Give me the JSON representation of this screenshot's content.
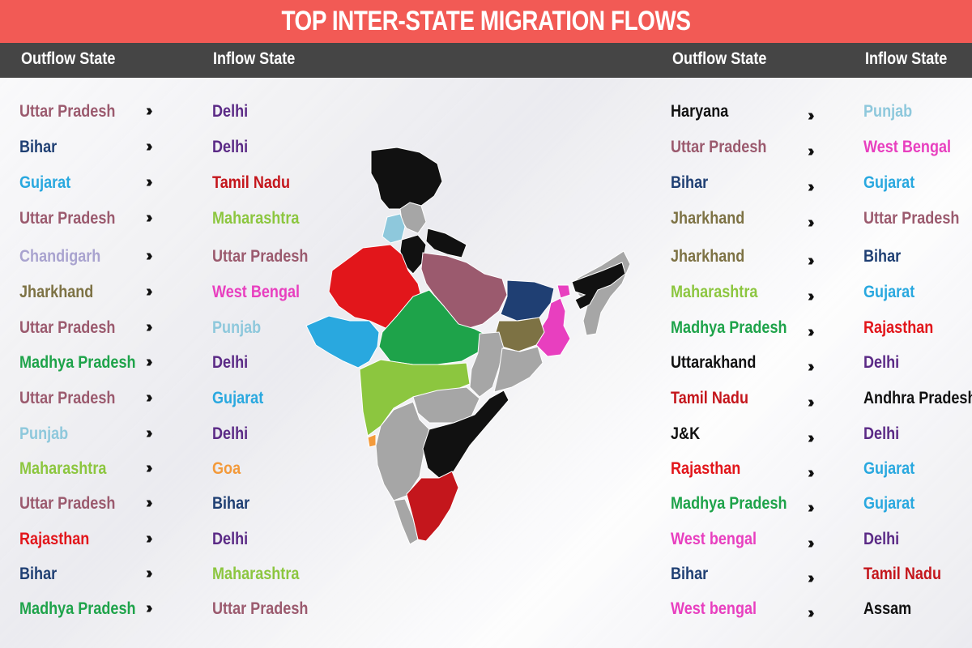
{
  "title": "TOP INTER-STATE MIGRATION FLOWS",
  "headers": {
    "left_outflow": "Outflow State",
    "left_inflow": "Inflow State",
    "right_outflow": "Outflow State",
    "right_inflow": "Inflow State"
  },
  "arrow_glyph": "››››",
  "colors": {
    "Uttar Pradesh": "#9b5a6e",
    "Bihar": "#1f3f73",
    "Gujarat": "#29a8df",
    "Chandigarh": "#a9a3cf",
    "Jharkhand": "#7d7244",
    "Madhya Pradesh": "#1ea34a",
    "Punjab": "#8ec8dc",
    "Maharashtra": "#8cc63f",
    "Rajasthan": "#e2161b",
    "Delhi": "#5b2a86",
    "Tamil Nadu": "#c4161c",
    "West Bengal": "#e83fbf",
    "Goa": "#f39a3b",
    "Haryana": "#111111",
    "Uttarakhand": "#111111",
    "J&K": "#111111",
    "Andhra Pradesh": "#111111",
    "Assam": "#111111"
  },
  "left_flows": [
    {
      "from": "Uttar Pradesh",
      "to": "Delhi",
      "from_color": "#9b5a6e",
      "to_color": "#5b2a86"
    },
    {
      "from": "Bihar",
      "to": "Delhi",
      "from_color": "#1f3f73",
      "to_color": "#5b2a86"
    },
    {
      "from": "Gujarat",
      "to": "Tamil Nadu",
      "from_color": "#29a8df",
      "to_color": "#c4161c"
    },
    {
      "from": "Uttar Pradesh",
      "to": "Maharashtra",
      "from_color": "#9b5a6e",
      "to_color": "#8cc63f"
    },
    {
      "from": "Chandigarh",
      "to": "Uttar Pradesh",
      "from_color": "#a9a3cf",
      "to_color": "#9b5a6e"
    },
    {
      "from": "Jharkhand",
      "to": "West Bengal",
      "from_color": "#7d7244",
      "to_color": "#e83fbf"
    },
    {
      "from": "Uttar Pradesh",
      "to": "Punjab",
      "from_color": "#9b5a6e",
      "to_color": "#8ec8dc"
    },
    {
      "from": "Madhya Pradesh",
      "to": "Delhi",
      "from_color": "#1ea34a",
      "to_color": "#5b2a86"
    },
    {
      "from": "Uttar Pradesh",
      "to": "Gujarat",
      "from_color": "#9b5a6e",
      "to_color": "#29a8df"
    },
    {
      "from": "Punjab",
      "to": "Delhi",
      "from_color": "#8ec8dc",
      "to_color": "#5b2a86"
    },
    {
      "from": "Maharashtra",
      "to": "Goa",
      "from_color": "#8cc63f",
      "to_color": "#f39a3b"
    },
    {
      "from": "Uttar Pradesh",
      "to": "Bihar",
      "from_color": "#9b5a6e",
      "to_color": "#1f3f73"
    },
    {
      "from": "Rajasthan",
      "to": "Delhi",
      "from_color": "#e2161b",
      "to_color": "#5b2a86"
    },
    {
      "from": "Bihar",
      "to": "Maharashtra",
      "from_color": "#1f3f73",
      "to_color": "#8cc63f"
    },
    {
      "from": "Madhya Pradesh",
      "to": "Uttar Pradesh",
      "from_color": "#1ea34a",
      "to_color": "#9b5a6e"
    }
  ],
  "right_flows": [
    {
      "from": "Haryana",
      "to": "Punjab",
      "from_color": "#111111",
      "to_color": "#8ec8dc"
    },
    {
      "from": "Uttar Pradesh",
      "to": "West Bengal",
      "from_color": "#9b5a6e",
      "to_color": "#e83fbf"
    },
    {
      "from": "Bihar",
      "to": "Gujarat",
      "from_color": "#1f3f73",
      "to_color": "#29a8df"
    },
    {
      "from": "Jharkhand",
      "to": "Uttar Pradesh",
      "from_color": "#7d7244",
      "to_color": "#9b5a6e"
    },
    {
      "from": "Jharkhand",
      "to": "Bihar",
      "from_color": "#7d7244",
      "to_color": "#1f3f73"
    },
    {
      "from": "Maharashtra",
      "to": "Gujarat",
      "from_color": "#8cc63f",
      "to_color": "#29a8df"
    },
    {
      "from": "Madhya Pradesh",
      "to": "Rajasthan",
      "from_color": "#1ea34a",
      "to_color": "#e2161b"
    },
    {
      "from": "Uttarakhand",
      "to": "Delhi",
      "from_color": "#111111",
      "to_color": "#5b2a86"
    },
    {
      "from": "Tamil Nadu",
      "to": "Andhra Pradesh",
      "from_color": "#c4161c",
      "to_color": "#111111"
    },
    {
      "from": "J&K",
      "to": "Delhi",
      "from_color": "#111111",
      "to_color": "#5b2a86"
    },
    {
      "from": "Rajasthan",
      "to": "Gujarat",
      "from_color": "#e2161b",
      "to_color": "#29a8df"
    },
    {
      "from": "Madhya Pradesh",
      "to": "Gujarat",
      "from_color": "#1ea34a",
      "to_color": "#29a8df"
    },
    {
      "from": "West bengal",
      "to": "Delhi",
      "from_color": "#e83fbf",
      "to_color": "#5b2a86"
    },
    {
      "from": "Bihar",
      "to": "Tamil Nadu",
      "from_color": "#1f3f73",
      "to_color": "#c4161c"
    },
    {
      "from": "West bengal",
      "to": "Assam",
      "from_color": "#e83fbf",
      "to_color": "#111111"
    }
  ],
  "map": {
    "highlighted_states": [
      {
        "name": "J&K",
        "color": "#111111"
      },
      {
        "name": "Punjab",
        "color": "#8ec8dc"
      },
      {
        "name": "Uttarakhand",
        "color": "#111111"
      },
      {
        "name": "Haryana",
        "color": "#111111"
      },
      {
        "name": "Rajasthan",
        "color": "#e2161b"
      },
      {
        "name": "Uttar Pradesh",
        "color": "#9b5a6e"
      },
      {
        "name": "Bihar",
        "color": "#1f3f73"
      },
      {
        "name": "West Bengal",
        "color": "#e83fbf"
      },
      {
        "name": "Jharkhand",
        "color": "#7d7244"
      },
      {
        "name": "Gujarat",
        "color": "#29a8df"
      },
      {
        "name": "Madhya Pradesh",
        "color": "#1ea34a"
      },
      {
        "name": "Maharashtra",
        "color": "#8cc63f"
      },
      {
        "name": "Goa",
        "color": "#f39a3b"
      },
      {
        "name": "Andhra Pradesh",
        "color": "#111111"
      },
      {
        "name": "Tamil Nadu",
        "color": "#c4161c"
      },
      {
        "name": "Assam",
        "color": "#111111"
      }
    ],
    "other_state_color": "#a6a6a6"
  }
}
